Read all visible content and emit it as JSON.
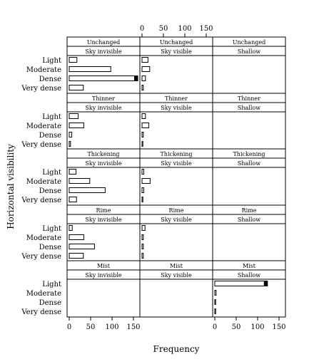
{
  "chart_data": {
    "type": "bar",
    "xlabel": "Frequency",
    "ylabel": "Horizontal visibility",
    "categories": [
      "Light",
      "Moderate",
      "Dense",
      "Very dense"
    ],
    "xlim": [
      -5,
      165
    ],
    "xticks": [
      "0",
      "50",
      "100",
      "150"
    ],
    "xtick_values": [
      0,
      50,
      100,
      150
    ],
    "col_labels": [
      "Sky invisible",
      "Sky visible",
      "Shallow"
    ],
    "row_labels": [
      "Unchanged",
      "Thinner",
      "Thickening",
      "Rime",
      "Mist"
    ],
    "grid": false,
    "panels": [
      {
        "row": "Unchanged",
        "col": "Sky invisible",
        "values": [
          18,
          97,
          160,
          33
        ]
      },
      {
        "row": "Unchanged",
        "col": "Sky visible",
        "values": [
          14,
          18,
          8,
          3
        ]
      },
      {
        "row": "Unchanged",
        "col": "Shallow",
        "values": null
      },
      {
        "row": "Thinner",
        "col": "Sky invisible",
        "values": [
          21,
          34,
          6,
          3
        ]
      },
      {
        "row": "Thinner",
        "col": "Sky visible",
        "values": [
          8,
          16,
          3,
          2
        ]
      },
      {
        "row": "Thinner",
        "col": "Shallow",
        "values": null
      },
      {
        "row": "Thickening",
        "col": "Sky invisible",
        "values": [
          16,
          48,
          84,
          17
        ]
      },
      {
        "row": "Thickening",
        "col": "Sky visible",
        "values": [
          4,
          19,
          4,
          2
        ]
      },
      {
        "row": "Thickening",
        "col": "Shallow",
        "values": null
      },
      {
        "row": "Rime",
        "col": "Sky invisible",
        "values": [
          7,
          34,
          59,
          33
        ]
      },
      {
        "row": "Rime",
        "col": "Sky visible",
        "values": [
          7,
          3,
          3,
          3
        ]
      },
      {
        "row": "Rime",
        "col": "Shallow",
        "values": null
      },
      {
        "row": "Mist",
        "col": "Sky invisible",
        "values": null
      },
      {
        "row": "Mist",
        "col": "Sky visible",
        "values": null
      },
      {
        "row": "Mist",
        "col": "Shallow",
        "values": [
          123,
          3,
          2,
          2
        ]
      }
    ]
  }
}
